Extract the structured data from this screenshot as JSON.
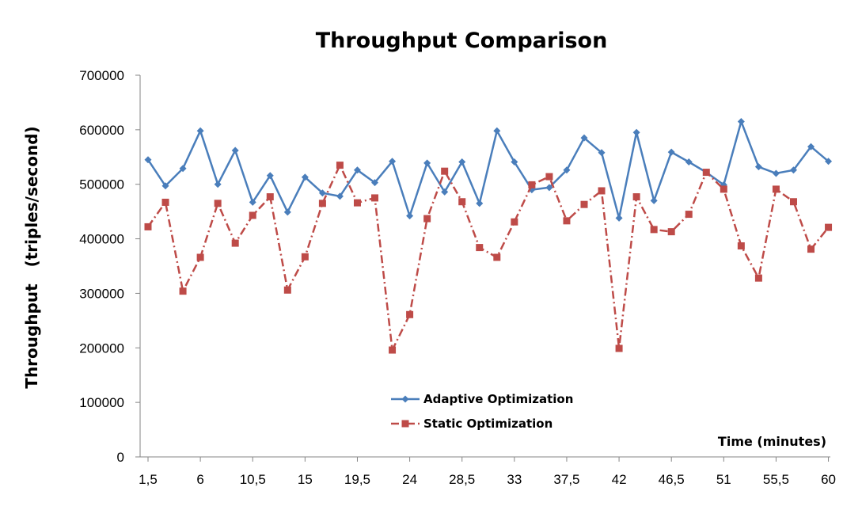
{
  "chart_data": {
    "type": "line",
    "title": "Throughput Comparison",
    "ylabel": "Throughput   (triples/second)",
    "xlabel": "Time (minutes)",
    "ylim": [
      0,
      700000
    ],
    "y_ticks": [
      "0",
      "100000",
      "200000",
      "300000",
      "400000",
      "500000",
      "600000",
      "700000"
    ],
    "x": [
      1.5,
      3,
      4.5,
      6,
      7.5,
      9,
      10.5,
      12,
      13.5,
      15,
      16.5,
      18,
      19.5,
      21,
      22.5,
      24,
      25.5,
      27,
      28.5,
      30,
      31.5,
      33,
      34.5,
      36,
      37.5,
      39,
      40.5,
      42,
      43.5,
      45,
      46.5,
      48,
      49.5,
      51,
      52.5,
      54,
      55.5,
      57,
      58.5,
      60
    ],
    "x_tick_labels": [
      "1,5",
      "6",
      "10,5",
      "15",
      "19,5",
      "24",
      "28,5",
      "33",
      "37,5",
      "42",
      "46,5",
      "51",
      "55,5",
      "60"
    ],
    "grid": false,
    "legend_position": "bottom-center",
    "series": [
      {
        "name": "Adaptive Optimization",
        "color": "#4a7ebb",
        "marker": "diamond",
        "line_style": "solid",
        "values": [
          545000,
          497000,
          529000,
          598000,
          500000,
          562000,
          467000,
          516000,
          449000,
          513000,
          484000,
          478000,
          526000,
          503000,
          542000,
          442000,
          539000,
          486000,
          541000,
          465000,
          598000,
          541000,
          490000,
          494000,
          526000,
          585000,
          558000,
          438000,
          595000,
          470000,
          559000,
          541000,
          522000,
          499000,
          615000,
          532000,
          520000,
          526000,
          569000,
          542000
        ]
      },
      {
        "name": "Static Optimization",
        "color": "#be4b48",
        "marker": "square",
        "line_style": "dash-dot",
        "values": [
          422000,
          467000,
          304000,
          366000,
          465000,
          392000,
          443000,
          477000,
          306000,
          367000,
          465000,
          535000,
          466000,
          475000,
          196000,
          261000,
          437000,
          524000,
          468000,
          384000,
          366000,
          431000,
          499000,
          514000,
          433000,
          463000,
          488000,
          199000,
          477000,
          417000,
          413000,
          445000,
          522000,
          491000,
          387000,
          328000,
          491000,
          468000,
          381000,
          421000
        ]
      }
    ]
  }
}
